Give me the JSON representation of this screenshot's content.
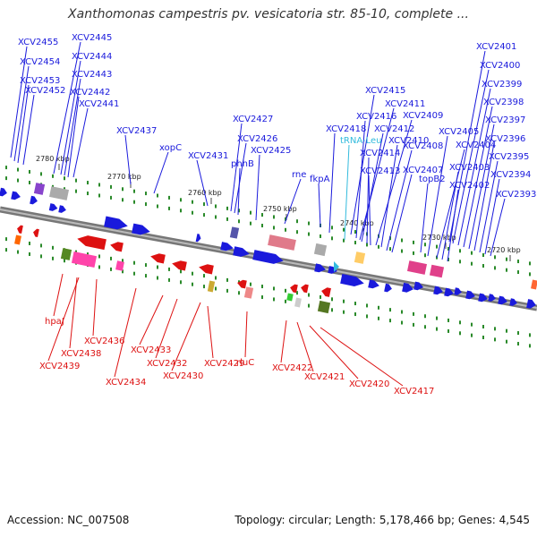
{
  "title": "Xanthomonas campestris pv. vesicatoria str. 85-10, complete ...",
  "footer": {
    "accession": "Accession: NC_007508",
    "info": "Topology: circular; Length: 5,178,466 bp; Genes: 4,545"
  },
  "colors": {
    "upper_gene": "#1a1adc",
    "lower_gene": "#dd1111",
    "trna": "#33bbdd"
  },
  "bp_ticks": [
    "2780 kbp",
    "2770 kbp",
    "2760 kbp",
    "2750 kbp",
    "2740 kbp",
    "2730 kbp",
    "2720 kbp"
  ],
  "upper_labels": [
    "XCV2455",
    "XCV2454",
    "XCV2453",
    "XCV2452",
    "XCV2445",
    "XCV2444",
    "XCV2443",
    "XCV2442",
    "XCV2441",
    "XCV2437",
    "xopC",
    "XCV2431",
    "XCV2427",
    "XCV2426",
    "phhB",
    "XCV2425",
    "rne",
    "fkpA",
    "XCV2418",
    "XCV2415",
    "XCV2416",
    "XCV2411",
    "XCV2412",
    "tRNA-Leu",
    "XCV2414",
    "XCV2413",
    "XCV2409",
    "XCV2410",
    "XCV2408",
    "XCV2407",
    "topB2",
    "XCV2405",
    "XCV2404",
    "XCV2403",
    "XCV2402",
    "XCV2401",
    "XCV2400",
    "XCV2399",
    "XCV2398",
    "XCV2397",
    "XCV2396",
    "XCV2395",
    "XCV2394",
    "XCV2393"
  ],
  "lower_labels": [
    "hpaJ",
    "XCV2438",
    "XCV2439",
    "XCV2436",
    "XCV2434",
    "XCV2433",
    "XCV2432",
    "XCV2430",
    "XCV2429",
    "rluC",
    "XCV2422",
    "XCV2421",
    "XCV2420",
    "XCV2417"
  ]
}
